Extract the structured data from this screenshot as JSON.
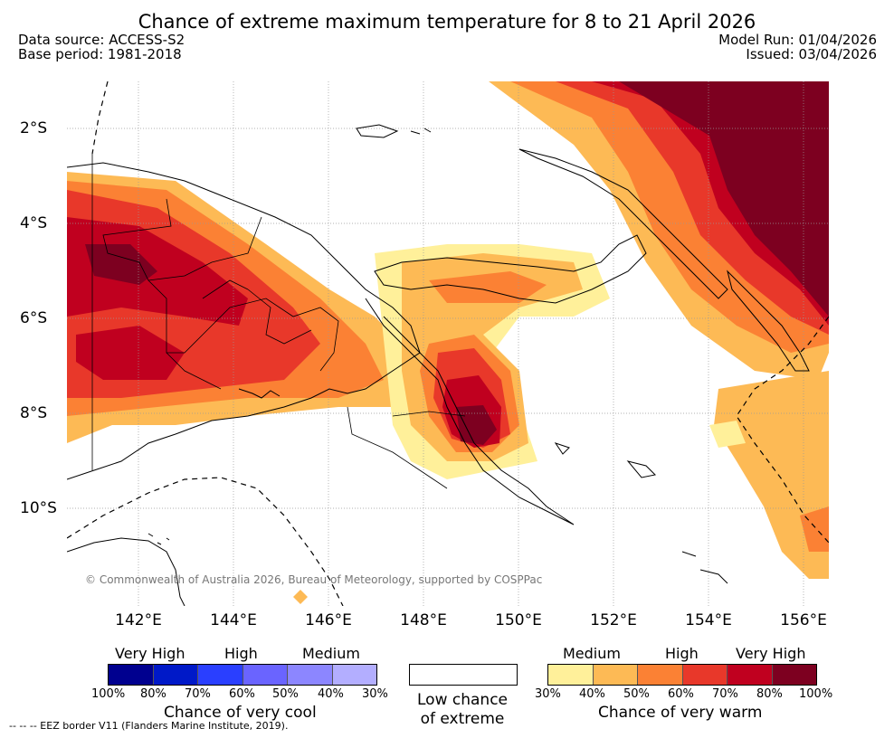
{
  "title": "Chance of extreme maximum temperature for 8 to 21 April 2026",
  "data_source": "Data source: ACCESS-S2",
  "base_period": "Base period: 1981-2018",
  "model_run": "Model Run: 01/04/2026",
  "issued": "Issued: 03/04/2026",
  "map": {
    "lat_labels": [
      "2°S",
      "4°S",
      "6°S",
      "8°S",
      "10°S"
    ],
    "lon_labels": [
      "142°E",
      "144°E",
      "146°E",
      "148°E",
      "150°E",
      "152°E",
      "154°E",
      "156°E"
    ],
    "copyright": "© Commonwealth of Australia 2026, Bureau of Meteorology, supported by COSPPac"
  },
  "legend": {
    "cool": {
      "levels": [
        "Very High",
        "High",
        "Medium"
      ],
      "ticks": [
        "100%",
        "80%",
        "70%",
        "60%",
        "50%",
        "40%",
        "30%"
      ],
      "colors": [
        "#00008f",
        "#0019c8",
        "#2a3fff",
        "#6a64ff",
        "#8c86ff",
        "#b3aeff"
      ],
      "caption": "Chance of very cool"
    },
    "low": {
      "caption_line1": "Low chance",
      "caption_line2": "of extreme"
    },
    "warm": {
      "levels": [
        "Medium",
        "High",
        "Very High"
      ],
      "ticks": [
        "30%",
        "40%",
        "50%",
        "60%",
        "70%",
        "80%",
        "100%"
      ],
      "colors": [
        "#fff09a",
        "#fdba55",
        "#fb8134",
        "#e8382a",
        "#c0001f",
        "#7d0020"
      ],
      "caption": "Chance of very warm"
    }
  },
  "footnote": "--  --  -- EEZ border V11 (Flanders Marine Institute, 2019)."
}
